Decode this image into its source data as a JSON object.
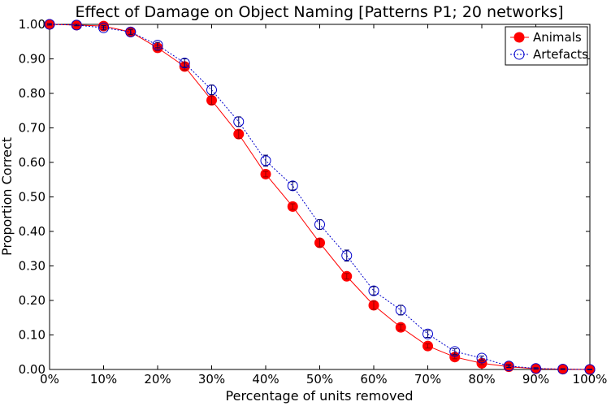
{
  "chart_data": {
    "type": "line",
    "title": "Effect of Damage on Object Naming [Patterns P1; 20 networks]",
    "xlabel": "Percentage of units removed",
    "ylabel": "Proportion Correct",
    "xlim": [
      0,
      100
    ],
    "ylim": [
      0,
      1.0
    ],
    "x_ticks": [
      "0%",
      "10%",
      "20%",
      "30%",
      "40%",
      "50%",
      "60%",
      "70%",
      "80%",
      "90%",
      "100%"
    ],
    "y_ticks": [
      "0.00",
      "0.10",
      "0.20",
      "0.30",
      "0.40",
      "0.50",
      "0.60",
      "0.70",
      "0.80",
      "0.90",
      "1.00"
    ],
    "legend_position": "top-right",
    "x": [
      0,
      5,
      10,
      15,
      20,
      25,
      30,
      35,
      40,
      45,
      50,
      55,
      60,
      65,
      70,
      75,
      80,
      85,
      90,
      95,
      100
    ],
    "series": [
      {
        "name": "Animals",
        "color": "#ff0000",
        "marker": "filled-circle",
        "line_style": "solid",
        "values": [
          1.0,
          0.998,
          0.995,
          0.978,
          0.932,
          0.878,
          0.78,
          0.682,
          0.566,
          0.472,
          0.367,
          0.27,
          0.186,
          0.122,
          0.068,
          0.036,
          0.018,
          0.008,
          0.002,
          0.001,
          0.0
        ],
        "errors": [
          0.002,
          0.002,
          0.003,
          0.006,
          0.008,
          0.01,
          0.012,
          0.012,
          0.008,
          0.008,
          0.012,
          0.008,
          0.012,
          0.008,
          0.006,
          0.005,
          0.004,
          0.003,
          0.001,
          0.001,
          0.001
        ]
      },
      {
        "name": "Artefacts",
        "color": "#0000cc",
        "marker": "open-circle",
        "line_style": "dotted",
        "values": [
          1.0,
          0.998,
          0.99,
          0.978,
          0.94,
          0.888,
          0.81,
          0.718,
          0.605,
          0.532,
          0.42,
          0.33,
          0.228,
          0.172,
          0.103,
          0.052,
          0.033,
          0.01,
          0.003,
          0.001,
          0.0
        ],
        "errors": [
          0.002,
          0.002,
          0.006,
          0.008,
          0.008,
          0.012,
          0.014,
          0.014,
          0.016,
          0.012,
          0.014,
          0.016,
          0.012,
          0.014,
          0.01,
          0.008,
          0.006,
          0.004,
          0.002,
          0.001,
          0.001
        ]
      }
    ]
  }
}
